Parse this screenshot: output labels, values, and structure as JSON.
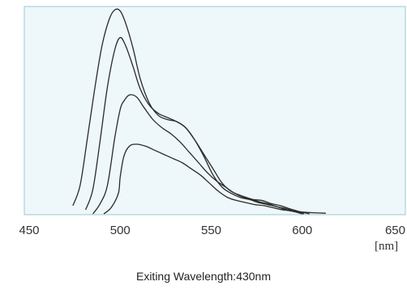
{
  "chart_data": {
    "type": "line",
    "title": "",
    "xlabel": "Exiting Wavelength:430nm",
    "ylabel": "",
    "x_unit": "[nm]",
    "xlim": [
      450,
      650
    ],
    "ylim": [
      0,
      1.0
    ],
    "x_ticks": [
      450,
      500,
      550,
      600,
      650
    ],
    "grid": false,
    "legend": "none",
    "series": [
      {
        "x": [
          474,
          478,
          482,
          486,
          490,
          494,
          497,
          500,
          503,
          507,
          511,
          516,
          521,
          526,
          531,
          536,
          541,
          546,
          551,
          556,
          561,
          566,
          571,
          576,
          581,
          586,
          591,
          596,
          600
        ],
        "y": [
          0.04,
          0.14,
          0.37,
          0.61,
          0.82,
          0.95,
          0.995,
          0.99,
          0.93,
          0.81,
          0.66,
          0.54,
          0.48,
          0.46,
          0.45,
          0.42,
          0.36,
          0.28,
          0.19,
          0.13,
          0.1,
          0.08,
          0.07,
          0.055,
          0.045,
          0.035,
          0.02,
          0.01,
          0.0
        ]
      },
      {
        "x": [
          481,
          485,
          489,
          493,
          497,
          500,
          503,
          507,
          511,
          516,
          521,
          526,
          531,
          536,
          541,
          546,
          551,
          556,
          561,
          566,
          571,
          576,
          581,
          586,
          591,
          596,
          601
        ],
        "y": [
          0.02,
          0.12,
          0.36,
          0.62,
          0.8,
          0.86,
          0.82,
          0.72,
          0.61,
          0.53,
          0.49,
          0.47,
          0.45,
          0.42,
          0.36,
          0.29,
          0.22,
          0.15,
          0.11,
          0.09,
          0.075,
          0.06,
          0.05,
          0.035,
          0.025,
          0.012,
          0.0
        ]
      },
      {
        "x": [
          485,
          489,
          493,
          497,
          500,
          502,
          505,
          509,
          513,
          518,
          523,
          528,
          533,
          538,
          543,
          548,
          553,
          558,
          563,
          568,
          573,
          578,
          583,
          588,
          593,
          598,
          604
        ],
        "y": [
          0.0,
          0.05,
          0.14,
          0.37,
          0.51,
          0.55,
          0.58,
          0.57,
          0.52,
          0.46,
          0.42,
          0.39,
          0.35,
          0.3,
          0.25,
          0.2,
          0.16,
          0.13,
          0.1,
          0.08,
          0.07,
          0.065,
          0.05,
          0.04,
          0.025,
          0.012,
          0.0
        ]
      },
      {
        "x": [
          491,
          495,
          499,
          500,
          502,
          505,
          509,
          514,
          519,
          524,
          529,
          534,
          539,
          544,
          549,
          554,
          559,
          564,
          569,
          574,
          579,
          584,
          589,
          594,
          599,
          605,
          613
        ],
        "y": [
          0.0,
          0.03,
          0.1,
          0.18,
          0.28,
          0.33,
          0.34,
          0.33,
          0.31,
          0.29,
          0.27,
          0.25,
          0.22,
          0.19,
          0.15,
          0.11,
          0.08,
          0.065,
          0.055,
          0.045,
          0.04,
          0.03,
          0.02,
          0.015,
          0.01,
          0.006,
          0.003
        ]
      }
    ]
  },
  "style": {
    "plot_background": "#eef7fa",
    "plot_border": "#9bc9d8",
    "line_color": "#2a2a2a"
  }
}
